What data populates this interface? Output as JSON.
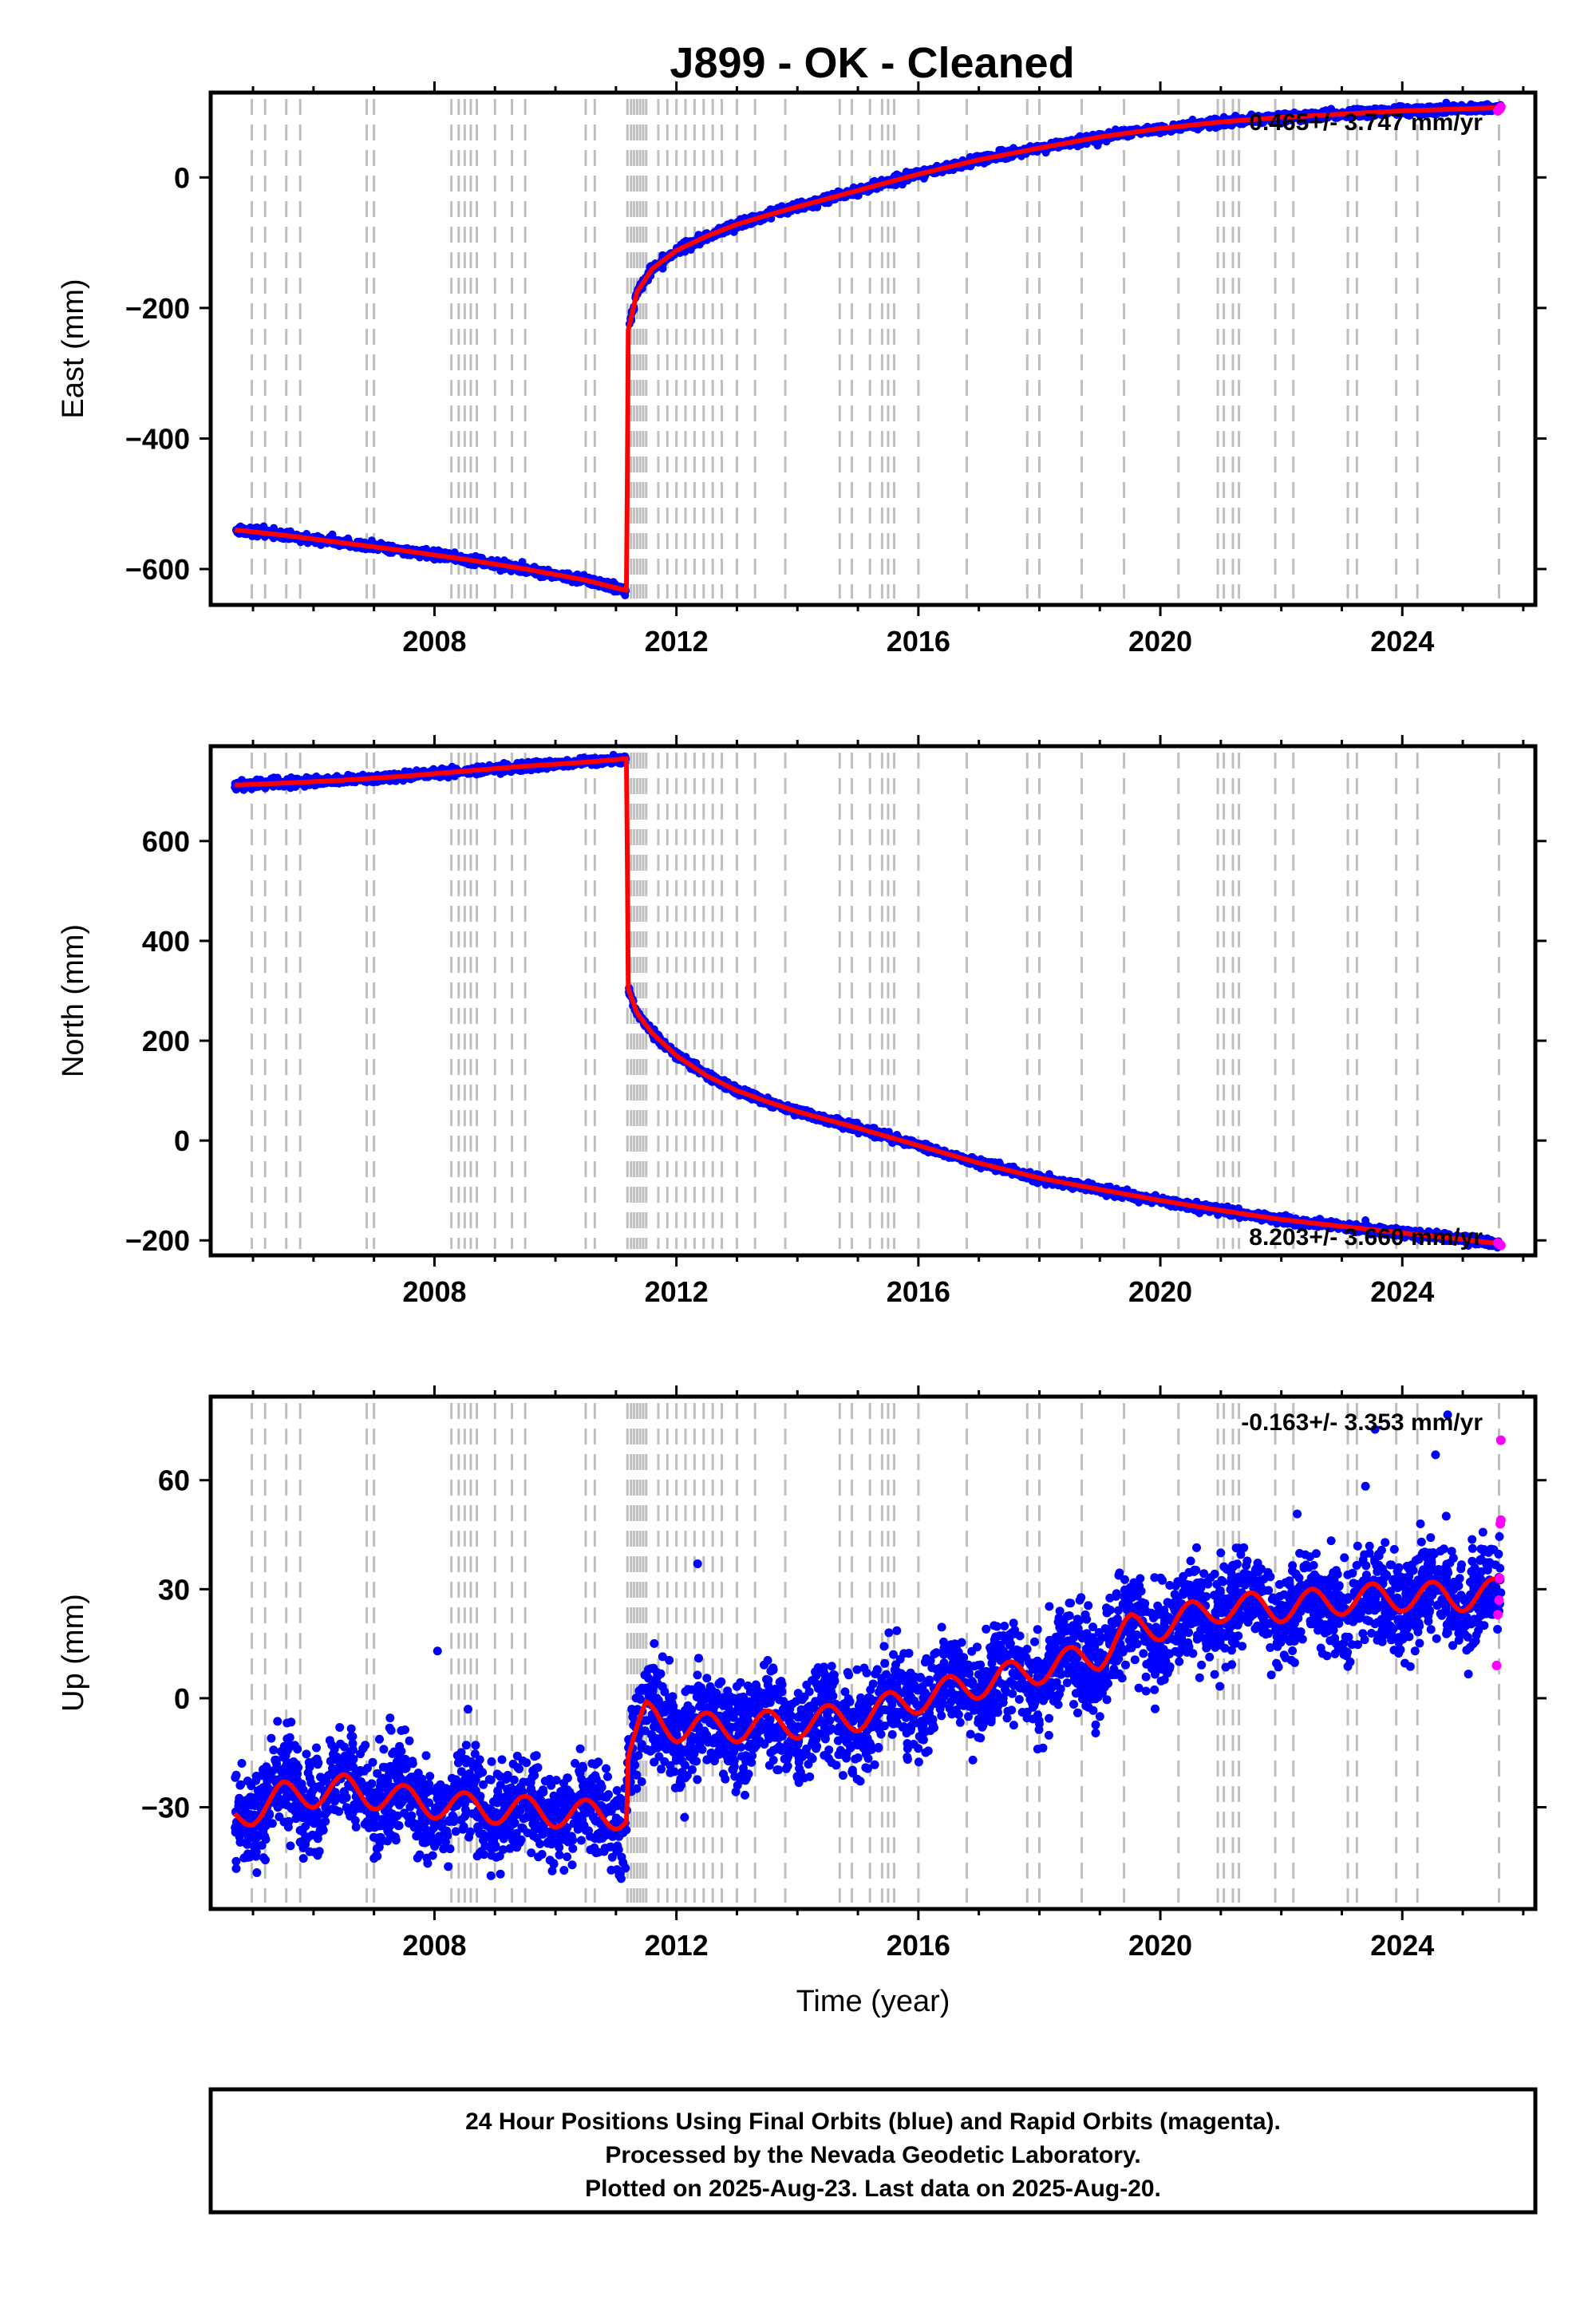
{
  "figure": {
    "title": "J899  - OK - Cleaned",
    "footer": [
      "24 Hour Positions Using Final Orbits (blue) and Rapid Orbits (magenta).",
      "Processed by the Nevada Geodetic Laboratory.",
      "Plotted on 2025-Aug-23. Last data on 2025-Aug-20."
    ],
    "colors": {
      "final_points": "#0000ff",
      "rapid_points": "#ff00ff",
      "model_line": "#ff0000",
      "event_lines": "#bfbfbf",
      "frame": "#000000"
    }
  },
  "chart_data": [
    {
      "type": "scatter",
      "panel": "east",
      "ylabel": "East (mm)",
      "xlabel": "",
      "rate_label": "0.465+/- 3.747 mm/yr",
      "xlim": [
        2004.3,
        2026.2
      ],
      "ylim": [
        -655,
        130
      ],
      "x_ticks": [
        2008,
        2012,
        2016,
        2020,
        2024
      ],
      "y_ticks": [
        -600,
        -400,
        -200,
        0
      ],
      "y_tick_labels": [
        "−600",
        "−400",
        "−200",
        "0"
      ],
      "grid": false,
      "data_start": 2004.7,
      "data_end": 2025.63,
      "step": {
        "epoch": 2011.19,
        "before": -633,
        "after": -235
      },
      "series": [
        {
          "name": "",
          "kind": "model",
          "x": [
            2004.7,
            2005.5,
            2006.5,
            2007.5,
            2008.5,
            2009.5,
            2010.5,
            2011.18,
            2011.2,
            2011.35,
            2011.6,
            2012.0,
            2012.5,
            2013.0,
            2013.5,
            2014.0,
            2015.0,
            2016.0,
            2017.0,
            2018.0,
            2019.0,
            2020.0,
            2021.0,
            2022.0,
            2023.0,
            2024.0,
            2025.0,
            2025.63
          ],
          "y": [
            -540,
            -548,
            -560,
            -572,
            -585,
            -600,
            -617,
            -633,
            -235,
            -175,
            -140,
            -112,
            -90,
            -72,
            -58,
            -45,
            -20,
            5,
            27,
            45,
            62,
            75,
            85,
            92,
            97,
            102,
            105,
            107
          ]
        }
      ],
      "rapid_points": {
        "x": [
          2025.58,
          2025.6,
          2025.62,
          2025.63
        ],
        "y": [
          102,
          104,
          106,
          108
        ]
      },
      "event_years": [
        2004.98,
        2005.2,
        2005.55,
        2005.78,
        2006.88,
        2007.0,
        2008.28,
        2008.4,
        2008.5,
        2008.6,
        2008.7,
        2009.0,
        2009.28,
        2009.5,
        2010.5,
        2010.65,
        2011.19,
        2011.25,
        2011.3,
        2011.35,
        2011.4,
        2011.45,
        2011.5,
        2011.7,
        2011.85,
        2012.0,
        2012.15,
        2012.3,
        2012.45,
        2012.6,
        2012.75,
        2013.0,
        2013.3,
        2013.8,
        2014.7,
        2014.9,
        2015.2,
        2015.4,
        2015.5,
        2015.6,
        2016.0,
        2016.8,
        2017.8,
        2018.0,
        2018.7,
        2019.4,
        2020.3,
        2020.95,
        2021.05,
        2021.2,
        2021.3,
        2021.9,
        2022.2,
        2023.1,
        2023.25,
        2023.9,
        2024.25,
        2025.6
      ]
    },
    {
      "type": "scatter",
      "panel": "north",
      "ylabel": "North (mm)",
      "xlabel": "",
      "rate_label": "8.203+/- 3.660 mm/yr",
      "xlim": [
        2004.3,
        2026.2
      ],
      "ylim": [
        -230,
        790
      ],
      "x_ticks": [
        2008,
        2012,
        2016,
        2020,
        2024
      ],
      "y_ticks": [
        -200,
        0,
        200,
        400,
        600
      ],
      "y_tick_labels": [
        "−200",
        "0",
        "200",
        "400",
        "600"
      ],
      "grid": false,
      "data_start": 2004.7,
      "data_end": 2025.63,
      "step": {
        "epoch": 2011.19,
        "before": 765,
        "after": 305
      },
      "series": [
        {
          "name": "",
          "kind": "model",
          "x": [
            2004.7,
            2005.5,
            2006.5,
            2007.5,
            2008.5,
            2009.5,
            2010.5,
            2011.18,
            2011.2,
            2011.35,
            2011.6,
            2012.0,
            2012.5,
            2013.0,
            2013.5,
            2014.0,
            2015.0,
            2016.0,
            2017.0,
            2018.0,
            2019.0,
            2020.0,
            2021.0,
            2022.0,
            2023.0,
            2024.0,
            2025.0,
            2025.63
          ],
          "y": [
            712,
            716,
            722,
            730,
            740,
            750,
            758,
            765,
            305,
            255,
            215,
            170,
            130,
            100,
            78,
            58,
            25,
            -10,
            -45,
            -75,
            -98,
            -120,
            -140,
            -158,
            -172,
            -185,
            -198,
            -207
          ]
        }
      ],
      "rapid_points": {
        "x": [
          2025.58,
          2025.6,
          2025.62,
          2025.63
        ],
        "y": [
          -205,
          -207,
          -209,
          -210
        ]
      },
      "event_years": [
        2004.98,
        2005.2,
        2005.55,
        2005.78,
        2006.88,
        2007.0,
        2008.28,
        2008.4,
        2008.5,
        2008.6,
        2008.7,
        2009.0,
        2009.28,
        2009.5,
        2010.5,
        2010.65,
        2011.19,
        2011.25,
        2011.3,
        2011.35,
        2011.4,
        2011.45,
        2011.5,
        2011.7,
        2011.85,
        2012.0,
        2012.15,
        2012.3,
        2012.45,
        2012.6,
        2012.75,
        2013.0,
        2013.3,
        2013.8,
        2014.7,
        2014.9,
        2015.2,
        2015.4,
        2015.5,
        2015.6,
        2016.0,
        2016.8,
        2017.8,
        2018.0,
        2018.7,
        2019.4,
        2020.3,
        2020.95,
        2021.05,
        2021.2,
        2021.3,
        2021.9,
        2022.2,
        2023.1,
        2023.25,
        2023.9,
        2024.25,
        2025.6
      ]
    },
    {
      "type": "scatter",
      "panel": "up",
      "ylabel": "Up (mm)",
      "xlabel": "Time (year)",
      "rate_label": "-0.163+/- 3.353 mm/yr",
      "xlim": [
        2004.3,
        2026.2
      ],
      "ylim": [
        -58,
        83
      ],
      "x_ticks": [
        2008,
        2012,
        2016,
        2020,
        2024
      ],
      "y_ticks": [
        -30,
        0,
        30,
        60
      ],
      "y_tick_labels": [
        "−30",
        "0",
        "30",
        "60"
      ],
      "grid": false,
      "data_start": 2004.7,
      "data_end": 2025.63,
      "step": {
        "epoch": 2011.19,
        "before": -32,
        "after": -15
      },
      "seasonal_amplitude_mm": 4,
      "scatter_sd_mm": 6.5,
      "series": [
        {
          "name": "",
          "kind": "model",
          "x": [
            2004.7,
            2005.5,
            2006.5,
            2007.5,
            2008.5,
            2009.5,
            2010.5,
            2011.18,
            2011.2,
            2011.5,
            2012.0,
            2013.0,
            2014.0,
            2015.0,
            2016.0,
            2017.0,
            2018.0,
            2019.0,
            2019.5,
            2020.0,
            2021.0,
            2022.0,
            2023.0,
            2024.0,
            2025.0,
            2025.63
          ],
          "y": [
            -33,
            -27,
            -25,
            -28,
            -30,
            -31,
            -32,
            -32,
            -15,
            -5,
            -8,
            -8,
            -7,
            -5,
            0,
            4,
            8,
            12,
            19,
            20,
            25,
            25,
            27,
            28,
            28,
            29
          ]
        }
      ],
      "rapid_points": {
        "x": [
          2025.56,
          2025.58,
          2025.6,
          2025.61,
          2025.62,
          2025.63,
          2025.63
        ],
        "y": [
          9,
          23,
          27,
          33,
          48,
          49,
          71
        ]
      },
      "outliers": {
        "x": [
          2008.05,
          2012.35,
          2023.55,
          2024.3,
          2024.75,
          2024.55
        ],
        "y": [
          13,
          37,
          74,
          48,
          78,
          67
        ]
      },
      "event_years": [
        2004.98,
        2005.2,
        2005.55,
        2005.78,
        2006.88,
        2007.0,
        2008.28,
        2008.4,
        2008.5,
        2008.6,
        2008.7,
        2009.0,
        2009.28,
        2009.5,
        2010.5,
        2010.65,
        2011.19,
        2011.25,
        2011.3,
        2011.35,
        2011.4,
        2011.45,
        2011.5,
        2011.7,
        2011.85,
        2012.0,
        2012.15,
        2012.3,
        2012.45,
        2012.6,
        2012.75,
        2013.0,
        2013.3,
        2013.8,
        2014.7,
        2014.9,
        2015.2,
        2015.4,
        2015.5,
        2015.6,
        2016.0,
        2016.8,
        2017.8,
        2018.0,
        2018.7,
        2019.4,
        2020.3,
        2020.95,
        2021.05,
        2021.2,
        2021.3,
        2021.9,
        2022.2,
        2023.1,
        2023.25,
        2023.9,
        2024.25,
        2025.6
      ]
    }
  ]
}
